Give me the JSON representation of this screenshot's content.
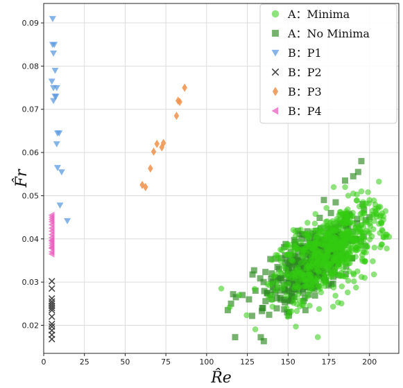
{
  "chart_data": {
    "type": "scatter",
    "xlabel": "R̂e",
    "ylabel": "F̂r",
    "xlim": [
      0,
      218
    ],
    "ylim": [
      0.0135,
      0.0945
    ],
    "xticks": [
      0,
      25,
      50,
      75,
      100,
      125,
      150,
      175,
      200
    ],
    "yticks": [
      0.02,
      0.03,
      0.04,
      0.05,
      0.06,
      0.07,
      0.08,
      0.09
    ],
    "ytick_labels": [
      "0.02",
      "0.03",
      "0.04",
      "0.05",
      "0.06",
      "0.07",
      "0.08",
      "0.09"
    ],
    "grid": true,
    "legend_position": "top-right",
    "series": [
      {
        "name": "A：Minima",
        "marker": "circle",
        "color": "#33cc11",
        "cluster": {
          "count": 650,
          "x_center": 178,
          "y_center": 0.0375,
          "x_spread": 17,
          "y_spread": 0.0045,
          "slope": 0.00022,
          "x_min": 110,
          "x_max": 212
        },
        "x": [
          109,
          120,
          138,
          160,
          178,
          185,
          190,
          195,
          200,
          205,
          210,
          212,
          203,
          197,
          183
        ],
        "y": [
          0.0285,
          0.027,
          0.0265,
          0.029,
          0.052,
          0.052,
          0.0505,
          0.051,
          0.049,
          0.047,
          0.041,
          0.0405,
          0.038,
          0.031,
          0.029
        ]
      },
      {
        "name": "A：No Minima",
        "marker": "square",
        "color": "#2e8b22",
        "cluster": {
          "count": 450,
          "x_center": 165,
          "y_center": 0.0345,
          "x_spread": 14,
          "y_spread": 0.0038,
          "slope": 0.00024,
          "x_min": 112,
          "x_max": 200
        },
        "x": [
          113,
          115,
          118,
          122,
          126,
          130,
          135,
          140,
          145,
          150,
          170,
          172,
          185,
          190,
          193,
          195,
          200
        ],
        "y": [
          0.0235,
          0.025,
          0.0265,
          0.027,
          0.026,
          0.028,
          0.03,
          0.032,
          0.031,
          0.033,
          0.0425,
          0.049,
          0.0535,
          0.0545,
          0.0555,
          0.058,
          0.045
        ]
      },
      {
        "name": "B：P1",
        "marker": "triangle-down",
        "color": "#5b9be0",
        "x": [
          5.5,
          5.5,
          6.5,
          6.0,
          7.0,
          5.0,
          6.0,
          8.0,
          7.0,
          7.5,
          6.0,
          8.5,
          9.5,
          8.0,
          8.5,
          11.0,
          10.0,
          14.5
        ],
        "y": [
          0.091,
          0.085,
          0.085,
          0.083,
          0.079,
          0.0765,
          0.075,
          0.075,
          0.073,
          0.073,
          0.072,
          0.0645,
          0.0645,
          0.062,
          0.0565,
          0.0555,
          0.0478,
          0.0442
        ]
      },
      {
        "name": "B：P2",
        "marker": "x",
        "color": "#444444",
        "x": [
          5,
          5,
          5,
          5,
          5,
          5,
          5,
          5,
          5,
          5,
          5,
          5,
          5,
          5
        ],
        "y": [
          0.0302,
          0.0285,
          0.0262,
          0.0255,
          0.025,
          0.0245,
          0.024,
          0.0235,
          0.022,
          0.0203,
          0.0197,
          0.0188,
          0.0178,
          0.0168
        ]
      },
      {
        "name": "B：P3",
        "marker": "diamond",
        "color": "#f0904a",
        "x": [
          60.5,
          62.5,
          65.5,
          67.5,
          69.5,
          72.5,
          73.5,
          81.5,
          82.5,
          83.5,
          86.5
        ],
        "y": [
          0.0525,
          0.052,
          0.0563,
          0.0602,
          0.062,
          0.0612,
          0.0622,
          0.0685,
          0.072,
          0.0717,
          0.075
        ]
      },
      {
        "name": "B：P4",
        "marker": "triangle-left",
        "color": "#e95fbd",
        "x": [
          5,
          5,
          5,
          5,
          5,
          5,
          5,
          5,
          5,
          5,
          5,
          5,
          5,
          5,
          5,
          5,
          5
        ],
        "y": [
          0.0455,
          0.045,
          0.0445,
          0.044,
          0.0433,
          0.0425,
          0.0418,
          0.041,
          0.0403,
          0.0397,
          0.039,
          0.0385,
          0.038,
          0.0378,
          0.037,
          0.0365,
          0.0395
        ]
      }
    ]
  }
}
